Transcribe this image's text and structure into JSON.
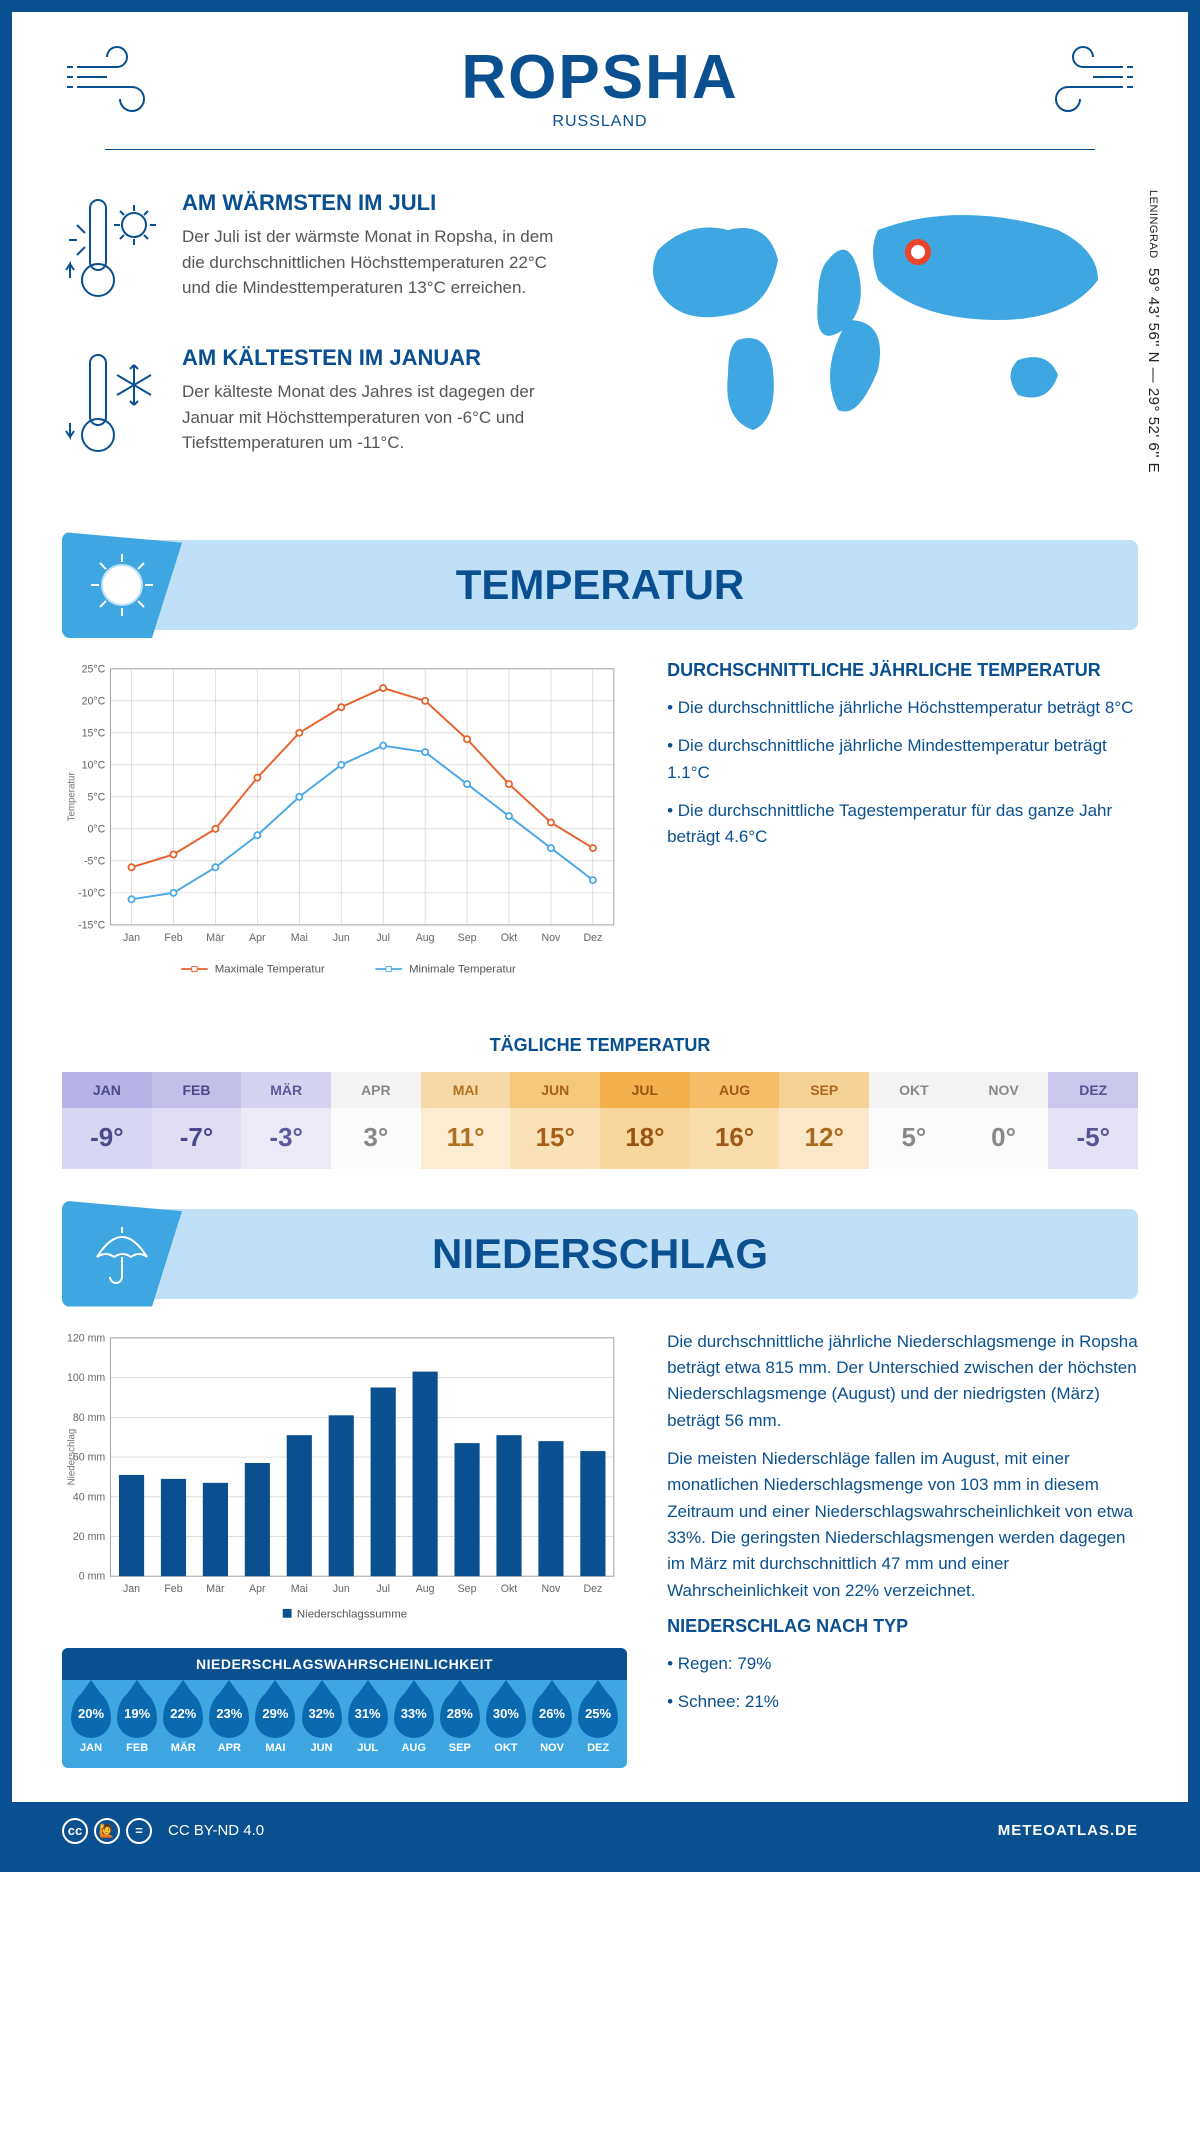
{
  "header": {
    "title": "ROPSHA",
    "country": "RUSSLAND"
  },
  "coords": {
    "text": "59° 43' 56'' N — 29° 52' 6'' E",
    "region": "LENINGRAD"
  },
  "warmest": {
    "title": "AM WÄRMSTEN IM JULI",
    "text": "Der Juli ist der wärmste Monat in Ropsha, in dem die durchschnittlichen Höchsttemperaturen 22°C und die Mindesttemperaturen 13°C erreichen."
  },
  "coldest": {
    "title": "AM KÄLTESTEN IM JANUAR",
    "text": "Der kälteste Monat des Jahres ist dagegen der Januar mit Höchsttemperaturen von -6°C und Tiefsttemperaturen um -11°C."
  },
  "temp_section": {
    "banner": "TEMPERATUR",
    "side_title": "DURCHSCHNITTLICHE JÄHRLICHE TEMPERATUR",
    "bullets": [
      "Die durchschnittliche jährliche Höchsttemperatur beträgt 8°C",
      "Die durchschnittliche jährliche Mindesttemperatur beträgt 1.1°C",
      "Die durchschnittliche Tagestemperatur für das ganze Jahr beträgt 4.6°C"
    ],
    "chart": {
      "months": [
        "Jan",
        "Feb",
        "Mär",
        "Apr",
        "Mai",
        "Jun",
        "Jul",
        "Aug",
        "Sep",
        "Okt",
        "Nov",
        "Dez"
      ],
      "max_series": {
        "label": "Maximale Temperatur",
        "color": "#e8612c",
        "values": [
          -6,
          -4,
          0,
          8,
          15,
          19,
          22,
          20,
          14,
          7,
          1,
          -3
        ]
      },
      "min_series": {
        "label": "Minimale Temperatur",
        "color": "#4aa8e8",
        "values": [
          -11,
          -10,
          -6,
          -1,
          5,
          10,
          13,
          12,
          7,
          2,
          -3,
          -8
        ]
      },
      "ymin": -15,
      "ymax": 25,
      "ystep": 5,
      "ylabel": "Temperatur",
      "grid_color": "#cccccc",
      "border_color": "#999999",
      "bg": "#ffffff"
    },
    "daily_title": "TÄGLICHE TEMPERATUR",
    "daily": [
      {
        "m": "JAN",
        "v": "-9°",
        "hbg": "#b8b3e6",
        "vbg": "#d9d6f2",
        "tc": "#4a4a8a"
      },
      {
        "m": "FEB",
        "v": "-7°",
        "hbg": "#c3bfe8",
        "vbg": "#e1def4",
        "tc": "#4a4a8a"
      },
      {
        "m": "MÄR",
        "v": "-3°",
        "hbg": "#d6d3f0",
        "vbg": "#edeaf8",
        "tc": "#5a5a9a"
      },
      {
        "m": "APR",
        "v": "3°",
        "hbg": "#f4f4f4",
        "vbg": "#fbfbfb",
        "tc": "#888"
      },
      {
        "m": "MAI",
        "v": "11°",
        "hbg": "#f7d9a8",
        "vbg": "#fbecd2",
        "tc": "#b07020"
      },
      {
        "m": "JUN",
        "v": "15°",
        "hbg": "#f5c77d",
        "vbg": "#fae2b8",
        "tc": "#a86018"
      },
      {
        "m": "JUL",
        "v": "18°",
        "hbg": "#f2b14d",
        "vbg": "#f8d79e",
        "tc": "#9a5410"
      },
      {
        "m": "AUG",
        "v": "16°",
        "hbg": "#f4bd66",
        "vbg": "#f9ddac",
        "tc": "#a05814"
      },
      {
        "m": "SEP",
        "v": "12°",
        "hbg": "#f6d296",
        "vbg": "#fbe8c8",
        "tc": "#aa681c"
      },
      {
        "m": "OKT",
        "v": "5°",
        "hbg": "#f4f4f4",
        "vbg": "#fbfbfb",
        "tc": "#888"
      },
      {
        "m": "NOV",
        "v": "0°",
        "hbg": "#f4f4f4",
        "vbg": "#fbfbfb",
        "tc": "#888"
      },
      {
        "m": "DEZ",
        "v": "-5°",
        "hbg": "#cac6ec",
        "vbg": "#e5e2f5",
        "tc": "#545494"
      }
    ]
  },
  "precip_section": {
    "banner": "NIEDERSCHLAG",
    "para1": "Die durchschnittliche jährliche Niederschlagsmenge in Ropsha beträgt etwa 815 mm. Der Unterschied zwischen der höchsten Niederschlagsmenge (August) und der niedrigsten (März) beträgt 56 mm.",
    "para2": "Die meisten Niederschläge fallen im August, mit einer monatlichen Niederschlagsmenge von 103 mm in diesem Zeitraum und einer Niederschlagswahrscheinlichkeit von etwa 33%. Die geringsten Niederschlagsmengen werden dagegen im März mit durchschnittlich 47 mm und einer Wahrscheinlichkeit von 22% verzeichnet.",
    "type_title": "NIEDERSCHLAG NACH TYP",
    "type_bullets": [
      "Regen: 79%",
      "Schnee: 21%"
    ],
    "chart": {
      "months": [
        "Jan",
        "Feb",
        "Mär",
        "Apr",
        "Mai",
        "Jun",
        "Jul",
        "Aug",
        "Sep",
        "Okt",
        "Nov",
        "Dez"
      ],
      "values": [
        51,
        49,
        47,
        57,
        71,
        81,
        95,
        103,
        67,
        71,
        68,
        63
      ],
      "ymin": 0,
      "ymax": 120,
      "ystep": 20,
      "ylabel": "Niederschlag",
      "bar_color": "#0a4f8f",
      "grid_color": "#cccccc",
      "border_color": "#999999",
      "legend": "Niederschlagssumme"
    },
    "prob_title": "NIEDERSCHLAGSWAHRSCHEINLICHKEIT",
    "prob": [
      {
        "m": "JAN",
        "p": "20%"
      },
      {
        "m": "FEB",
        "p": "19%"
      },
      {
        "m": "MÄR",
        "p": "22%"
      },
      {
        "m": "APR",
        "p": "23%"
      },
      {
        "m": "MAI",
        "p": "29%"
      },
      {
        "m": "JUN",
        "p": "32%"
      },
      {
        "m": "JUL",
        "p": "31%"
      },
      {
        "m": "AUG",
        "p": "33%"
      },
      {
        "m": "SEP",
        "p": "28%"
      },
      {
        "m": "OKT",
        "p": "30%"
      },
      {
        "m": "NOV",
        "p": "26%"
      },
      {
        "m": "DEZ",
        "p": "25%"
      }
    ]
  },
  "footer": {
    "license": "CC BY-ND 4.0",
    "site": "METEOATLAS.DE"
  }
}
